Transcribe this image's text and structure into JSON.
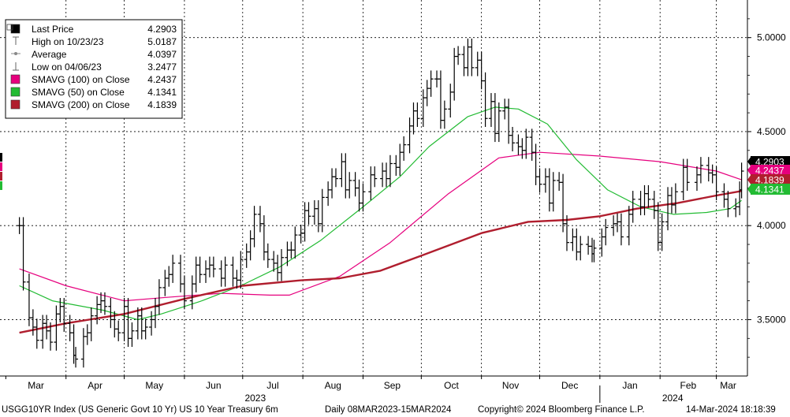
{
  "chart_data": {
    "type": "line",
    "title": "",
    "xlabel": "",
    "ylabel": "",
    "ylim": [
      3.2,
      5.2
    ],
    "yticks": [
      "5.0000",
      "4.5000",
      "4.0000",
      "3.5000"
    ],
    "ytick_values": [
      5.0,
      4.5,
      4.0,
      3.5
    ],
    "x_range": [
      "2023-03-08",
      "2024-03-14"
    ],
    "month_labels": [
      {
        "label": "Mar",
        "date": "2023-03-01"
      },
      {
        "label": "Apr",
        "date": "2023-04-01"
      },
      {
        "label": "May",
        "date": "2023-05-01"
      },
      {
        "label": "Jun",
        "date": "2023-06-01"
      },
      {
        "label": "Jul",
        "date": "2023-07-01"
      },
      {
        "label": "Aug",
        "date": "2023-08-01"
      },
      {
        "label": "Sep",
        "date": "2023-09-01"
      },
      {
        "label": "Oct",
        "date": "2023-10-01"
      },
      {
        "label": "Nov",
        "date": "2023-11-01"
      },
      {
        "label": "Dec",
        "date": "2023-12-01"
      },
      {
        "label": "Jan",
        "date": "2024-01-01"
      },
      {
        "label": "Feb",
        "date": "2024-02-01"
      },
      {
        "label": "Mar",
        "date": "2024-03-01"
      }
    ],
    "year_labels": [
      {
        "label": "2023",
        "date": "2023-07-01"
      },
      {
        "label": "2024",
        "date": "2024-02-01"
      }
    ],
    "grid": true,
    "legend_position": "top-left",
    "legend": [
      {
        "label": "Last Price",
        "value": "4.2903",
        "marker": "square",
        "color": "#000000"
      },
      {
        "label": "High on 10/23/23",
        "value": "5.0187",
        "marker": "high-tick",
        "color": "#666666"
      },
      {
        "label": "Average",
        "value": "4.0397",
        "marker": "dash-dot",
        "color": "#888888"
      },
      {
        "label": "Low on 04/06/23",
        "value": "3.2477",
        "marker": "low-tick",
        "color": "#666666"
      },
      {
        "label": "SMAVG (100)  on Close",
        "value": "4.2437",
        "marker": "square",
        "color": "#e6007e"
      },
      {
        "label": "SMAVG (50)   on Close",
        "value": "4.1341",
        "marker": "square",
        "color": "#22bb33"
      },
      {
        "label": "SMAVG (200)  on Close",
        "value": "4.1839",
        "marker": "square",
        "color": "#b01e2e"
      }
    ],
    "right_tags": [
      {
        "value": 4.2903,
        "text": "4.2903",
        "bg": "#000000",
        "fg": "#ffffff"
      },
      {
        "value": 4.2437,
        "text": "4.2437",
        "bg": "#e6007e",
        "fg": "#ffffff"
      },
      {
        "value": 4.1839,
        "text": "4.1839",
        "bg": "#b01e2e",
        "fg": "#ffffff"
      },
      {
        "value": 4.1341,
        "text": "4.1341",
        "bg": "#22bb33",
        "fg": "#ffffff"
      }
    ],
    "series": [
      {
        "name": "Last Price",
        "kind": "hlc_bars",
        "color": "#000000",
        "values": [
          [
            "2023-03-08",
            4.0
          ],
          [
            "2023-03-10",
            3.7
          ],
          [
            "2023-03-13",
            3.51
          ],
          [
            "2023-03-15",
            3.46
          ],
          [
            "2023-03-17",
            3.39
          ],
          [
            "2023-03-20",
            3.48
          ],
          [
            "2023-03-22",
            3.44
          ],
          [
            "2023-03-24",
            3.38
          ],
          [
            "2023-03-27",
            3.53
          ],
          [
            "2023-03-29",
            3.57
          ],
          [
            "2023-03-31",
            3.48
          ],
          [
            "2023-04-03",
            3.43
          ],
          [
            "2023-04-05",
            3.31
          ],
          [
            "2023-04-06",
            3.29
          ],
          [
            "2023-04-10",
            3.41
          ],
          [
            "2023-04-12",
            3.43
          ],
          [
            "2023-04-14",
            3.52
          ],
          [
            "2023-04-17",
            3.58
          ],
          [
            "2023-04-19",
            3.6
          ],
          [
            "2023-04-21",
            3.57
          ],
          [
            "2023-04-24",
            3.5
          ],
          [
            "2023-04-26",
            3.45
          ],
          [
            "2023-04-28",
            3.43
          ],
          [
            "2023-05-01",
            3.57
          ],
          [
            "2023-05-03",
            3.4
          ],
          [
            "2023-05-05",
            3.44
          ],
          [
            "2023-05-08",
            3.52
          ],
          [
            "2023-05-10",
            3.44
          ],
          [
            "2023-05-12",
            3.46
          ],
          [
            "2023-05-15",
            3.5
          ],
          [
            "2023-05-17",
            3.57
          ],
          [
            "2023-05-19",
            3.67
          ],
          [
            "2023-05-22",
            3.72
          ],
          [
            "2023-05-24",
            3.74
          ],
          [
            "2023-05-26",
            3.8
          ],
          [
            "2023-05-30",
            3.69
          ],
          [
            "2023-06-01",
            3.6
          ],
          [
            "2023-06-05",
            3.69
          ],
          [
            "2023-06-07",
            3.79
          ],
          [
            "2023-06-09",
            3.74
          ],
          [
            "2023-06-12",
            3.77
          ],
          [
            "2023-06-14",
            3.79
          ],
          [
            "2023-06-16",
            3.77
          ],
          [
            "2023-06-20",
            3.72
          ],
          [
            "2023-06-22",
            3.79
          ],
          [
            "2023-06-26",
            3.72
          ],
          [
            "2023-06-28",
            3.71
          ],
          [
            "2023-06-30",
            3.82
          ],
          [
            "2023-07-03",
            3.86
          ],
          [
            "2023-07-05",
            3.93
          ],
          [
            "2023-07-07",
            4.06
          ],
          [
            "2023-07-10",
            4.01
          ],
          [
            "2023-07-12",
            3.86
          ],
          [
            "2023-07-14",
            3.82
          ],
          [
            "2023-07-17",
            3.8
          ],
          [
            "2023-07-19",
            3.75
          ],
          [
            "2023-07-21",
            3.83
          ],
          [
            "2023-07-24",
            3.87
          ],
          [
            "2023-07-26",
            3.87
          ],
          [
            "2023-07-28",
            3.95
          ],
          [
            "2023-07-31",
            3.96
          ],
          [
            "2023-08-02",
            4.08
          ],
          [
            "2023-08-04",
            4.05
          ],
          [
            "2023-08-07",
            4.09
          ],
          [
            "2023-08-09",
            4.01
          ],
          [
            "2023-08-11",
            4.15
          ],
          [
            "2023-08-14",
            4.19
          ],
          [
            "2023-08-16",
            4.26
          ],
          [
            "2023-08-18",
            4.25
          ],
          [
            "2023-08-21",
            4.34
          ],
          [
            "2023-08-23",
            4.19
          ],
          [
            "2023-08-25",
            4.24
          ],
          [
            "2023-08-28",
            4.2
          ],
          [
            "2023-08-30",
            4.12
          ],
          [
            "2023-09-01",
            4.18
          ],
          [
            "2023-09-05",
            4.27
          ],
          [
            "2023-09-07",
            4.25
          ],
          [
            "2023-09-11",
            4.29
          ],
          [
            "2023-09-13",
            4.25
          ],
          [
            "2023-09-15",
            4.33
          ],
          [
            "2023-09-18",
            4.31
          ],
          [
            "2023-09-20",
            4.39
          ],
          [
            "2023-09-22",
            4.43
          ],
          [
            "2023-09-25",
            4.53
          ],
          [
            "2023-09-27",
            4.61
          ],
          [
            "2023-09-29",
            4.57
          ],
          [
            "2023-10-02",
            4.68
          ],
          [
            "2023-10-04",
            4.73
          ],
          [
            "2023-10-06",
            4.78
          ],
          [
            "2023-10-09",
            4.78
          ],
          [
            "2023-10-11",
            4.56
          ],
          [
            "2023-10-13",
            4.62
          ],
          [
            "2023-10-16",
            4.71
          ],
          [
            "2023-10-18",
            4.9
          ],
          [
            "2023-10-20",
            4.91
          ],
          [
            "2023-10-23",
            4.84
          ],
          [
            "2023-10-25",
            4.95
          ],
          [
            "2023-10-27",
            4.84
          ],
          [
            "2023-10-30",
            4.88
          ],
          [
            "2023-11-01",
            4.77
          ],
          [
            "2023-11-03",
            4.57
          ],
          [
            "2023-11-06",
            4.66
          ],
          [
            "2023-11-08",
            4.49
          ],
          [
            "2023-11-10",
            4.61
          ],
          [
            "2023-11-13",
            4.63
          ],
          [
            "2023-11-15",
            4.48
          ],
          [
            "2023-11-17",
            4.44
          ],
          [
            "2023-11-20",
            4.42
          ],
          [
            "2023-11-22",
            4.4
          ],
          [
            "2023-11-24",
            4.47
          ],
          [
            "2023-11-27",
            4.39
          ],
          [
            "2023-11-29",
            4.26
          ],
          [
            "2023-12-01",
            4.22
          ],
          [
            "2023-12-04",
            4.26
          ],
          [
            "2023-12-06",
            4.12
          ],
          [
            "2023-12-08",
            4.24
          ],
          [
            "2023-12-11",
            4.23
          ],
          [
            "2023-12-13",
            4.01
          ],
          [
            "2023-12-15",
            3.91
          ],
          [
            "2023-12-18",
            3.94
          ],
          [
            "2023-12-20",
            3.86
          ],
          [
            "2023-12-22",
            3.9
          ],
          [
            "2023-12-26",
            3.89
          ],
          [
            "2023-12-28",
            3.85
          ],
          [
            "2023-12-29",
            3.88
          ],
          [
            "2024-01-02",
            3.94
          ],
          [
            "2024-01-04",
            3.99
          ],
          [
            "2024-01-08",
            4.01
          ],
          [
            "2024-01-10",
            4.02
          ],
          [
            "2024-01-12",
            3.94
          ],
          [
            "2024-01-16",
            4.06
          ],
          [
            "2024-01-18",
            4.14
          ],
          [
            "2024-01-22",
            4.1
          ],
          [
            "2024-01-24",
            4.17
          ],
          [
            "2024-01-26",
            4.14
          ],
          [
            "2024-01-29",
            4.08
          ],
          [
            "2024-01-31",
            3.91
          ],
          [
            "2024-02-02",
            4.02
          ],
          [
            "2024-02-05",
            4.16
          ],
          [
            "2024-02-07",
            4.11
          ],
          [
            "2024-02-09",
            4.18
          ],
          [
            "2024-02-13",
            4.31
          ],
          [
            "2024-02-15",
            4.23
          ],
          [
            "2024-02-20",
            4.27
          ],
          [
            "2024-02-22",
            4.32
          ],
          [
            "2024-02-26",
            4.28
          ],
          [
            "2024-02-28",
            4.27
          ],
          [
            "2024-03-01",
            4.18
          ],
          [
            "2024-03-05",
            4.14
          ],
          [
            "2024-03-07",
            4.09
          ],
          [
            "2024-03-11",
            4.1
          ],
          [
            "2024-03-13",
            4.19
          ],
          [
            "2024-03-14",
            4.29
          ]
        ]
      },
      {
        "name": "SMAVG (100)  on Close",
        "kind": "line",
        "color": "#e6007e",
        "values": [
          [
            "2023-03-08",
            3.77
          ],
          [
            "2023-04-01",
            3.68
          ],
          [
            "2023-05-01",
            3.6
          ],
          [
            "2023-05-25",
            3.62
          ],
          [
            "2023-06-20",
            3.64
          ],
          [
            "2023-07-15",
            3.63
          ],
          [
            "2023-07-25",
            3.63
          ],
          [
            "2023-08-20",
            3.73
          ],
          [
            "2023-09-15",
            3.91
          ],
          [
            "2023-10-15",
            4.17
          ],
          [
            "2023-11-10",
            4.36
          ],
          [
            "2023-12-01",
            4.39
          ],
          [
            "2024-01-01",
            4.37
          ],
          [
            "2024-02-01",
            4.34
          ],
          [
            "2024-03-01",
            4.29
          ],
          [
            "2024-03-14",
            4.2437
          ]
        ]
      },
      {
        "name": "SMAVG (50)   on Close",
        "kind": "line",
        "color": "#22bb33",
        "values": [
          [
            "2023-03-08",
            3.68
          ],
          [
            "2023-03-25",
            3.6
          ],
          [
            "2023-04-20",
            3.55
          ],
          [
            "2023-05-08",
            3.5
          ],
          [
            "2023-05-20",
            3.53
          ],
          [
            "2023-06-10",
            3.6
          ],
          [
            "2023-06-30",
            3.68
          ],
          [
            "2023-07-20",
            3.78
          ],
          [
            "2023-08-10",
            3.92
          ],
          [
            "2023-09-01",
            4.1
          ],
          [
            "2023-09-20",
            4.26
          ],
          [
            "2023-10-05",
            4.42
          ],
          [
            "2023-10-25",
            4.58
          ],
          [
            "2023-11-08",
            4.63
          ],
          [
            "2023-11-20",
            4.62
          ],
          [
            "2023-12-05",
            4.54
          ],
          [
            "2023-12-20",
            4.35
          ],
          [
            "2024-01-05",
            4.19
          ],
          [
            "2024-01-22",
            4.1
          ],
          [
            "2024-02-08",
            4.06
          ],
          [
            "2024-02-25",
            4.07
          ],
          [
            "2024-03-08",
            4.09
          ],
          [
            "2024-03-14",
            4.1341
          ]
        ]
      },
      {
        "name": "SMAVG (200)  on Close",
        "kind": "line",
        "color": "#b01e2e",
        "values": [
          [
            "2023-03-08",
            3.43
          ],
          [
            "2023-04-01",
            3.48
          ],
          [
            "2023-05-01",
            3.53
          ],
          [
            "2023-06-01",
            3.61
          ],
          [
            "2023-07-01",
            3.68
          ],
          [
            "2023-08-01",
            3.71
          ],
          [
            "2023-08-20",
            3.72
          ],
          [
            "2023-09-10",
            3.76
          ],
          [
            "2023-10-01",
            3.84
          ],
          [
            "2023-11-01",
            3.96
          ],
          [
            "2023-11-25",
            4.02
          ],
          [
            "2023-12-15",
            4.03
          ],
          [
            "2024-01-01",
            4.05
          ],
          [
            "2024-01-20",
            4.09
          ],
          [
            "2024-02-10",
            4.12
          ],
          [
            "2024-03-01",
            4.16
          ],
          [
            "2024-03-14",
            4.1839
          ]
        ]
      }
    ]
  },
  "footer": {
    "security": "USGG10YR Index (US Generic Govt 10 Yr) US 10 Year Treasury 6m",
    "period": "Daily 08MAR2023-15MAR2024",
    "copyright": "Copyright© 2024 Bloomberg Finance L.P.",
    "timestamp": "14-Mar-2024 18:18:39"
  }
}
